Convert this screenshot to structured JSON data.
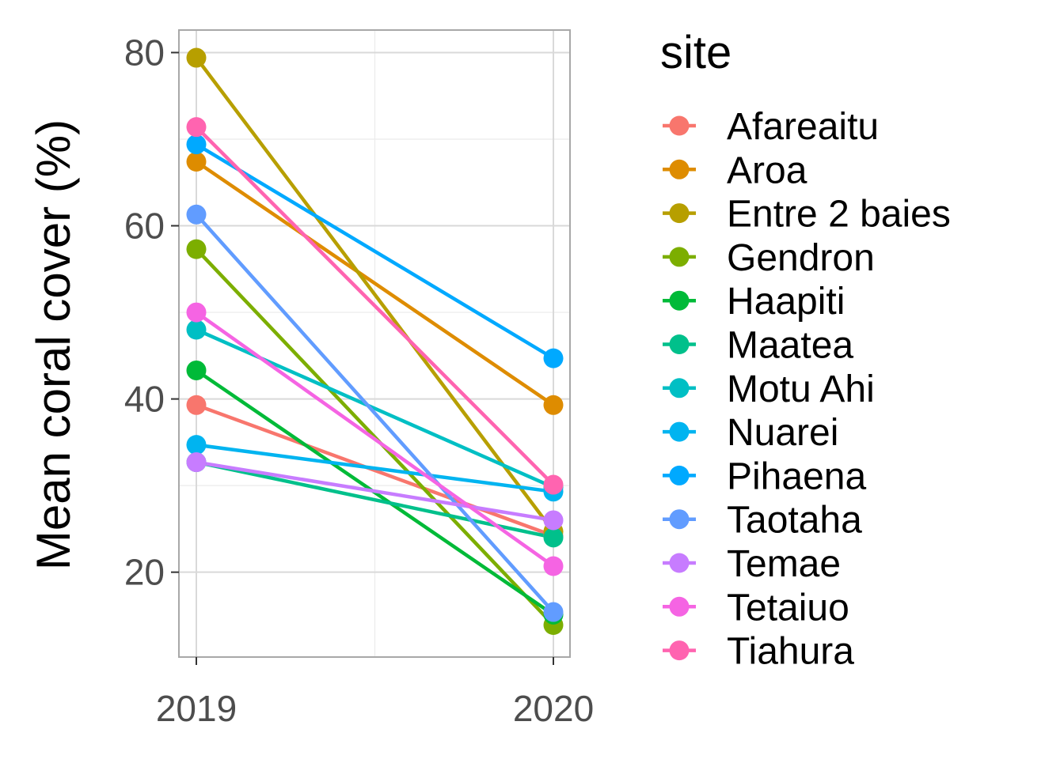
{
  "chart_data": {
    "type": "line",
    "title": "",
    "xlabel": "",
    "ylabel": "Mean coral cover (%)",
    "x": [
      "2019",
      "2020"
    ],
    "ylim": [
      10.2,
      82.6
    ],
    "yticks": [
      20,
      40,
      60,
      80
    ],
    "grid": true,
    "legend": {
      "title": "site",
      "position": "right"
    },
    "series": [
      {
        "name": "Afareaitu",
        "color": "#F8766D",
        "values": [
          39.3,
          24.2
        ]
      },
      {
        "name": "Aroa",
        "color": "#DE8C00",
        "values": [
          67.4,
          39.3
        ]
      },
      {
        "name": "Entre 2 baies",
        "color": "#B79F00",
        "values": [
          79.4,
          24.7
        ]
      },
      {
        "name": "Gendron",
        "color": "#7CAE00",
        "values": [
          57.3,
          13.9
        ]
      },
      {
        "name": "Haapiti",
        "color": "#00BA38",
        "values": [
          43.3,
          15.1
        ]
      },
      {
        "name": "Maatea",
        "color": "#00C08B",
        "values": [
          32.7,
          24.0
        ]
      },
      {
        "name": "Motu Ahi",
        "color": "#00BFC4",
        "values": [
          48.0,
          29.8
        ]
      },
      {
        "name": "Nuarei",
        "color": "#00B4F0",
        "values": [
          34.7,
          29.3
        ]
      },
      {
        "name": "Pihaena",
        "color": "#00A9FF",
        "values": [
          69.4,
          44.7
        ]
      },
      {
        "name": "Taotaha",
        "color": "#619CFF",
        "values": [
          61.3,
          15.4
        ]
      },
      {
        "name": "Temae",
        "color": "#C77CFF",
        "values": [
          32.7,
          26.0
        ]
      },
      {
        "name": "Tetaiuo",
        "color": "#F564E3",
        "values": [
          50.0,
          20.7
        ]
      },
      {
        "name": "Tiahura",
        "color": "#FF64B0",
        "values": [
          71.4,
          30.1
        ]
      }
    ]
  }
}
